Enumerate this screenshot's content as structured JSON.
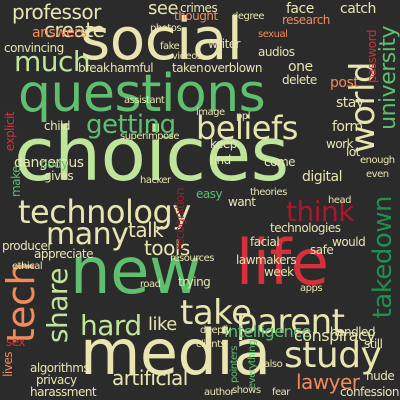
{
  "colors": {
    "background": "#2b2b2b",
    "light_green": "#bfe59a",
    "mid_green": "#5fbf6f",
    "dark_green": "#1f8f4a",
    "cream": "#e8e5b0",
    "orange": "#f28a5a",
    "red": "#d7303a",
    "dark_red": "#a9182a"
  },
  "words": [
    "choices",
    "media",
    "new",
    "life",
    "social",
    "questions",
    "technology",
    "tech",
    "many",
    "parent",
    "study",
    "take",
    "share",
    "hard",
    "beliefs",
    "getting",
    "think",
    "takedown",
    "world",
    "university",
    "much",
    "professor",
    "see",
    "create",
    "answers",
    "convincing",
    "tools",
    "lawyer",
    "artificial",
    "talk",
    "intelligence",
    "conspiracy",
    "like",
    "recognition",
    "dangerous",
    "explicit",
    "password",
    "research",
    "catch",
    "face",
    "post",
    "stay",
    "form",
    "one",
    "delete",
    "privacy",
    "harassment",
    "algorithms",
    "confession",
    "nude",
    "lives",
    "sex",
    "ethical",
    "appreciate",
    "producer",
    "make",
    "gives",
    "body",
    "keep",
    "work",
    "digital",
    "come",
    "find",
    "trying",
    "road",
    "handled",
    "week",
    "safe",
    "would",
    "still",
    "technologies",
    "facial",
    "resources",
    "shows",
    "author",
    "fear",
    "also",
    "pointers",
    "even",
    "lot",
    "enough",
    "head",
    "easy",
    "want",
    "theories",
    "break",
    "harmful",
    "taken",
    "overblown",
    "thought",
    "crimes",
    "writer",
    "audios",
    "degree",
    "image",
    "superimpose",
    "child",
    "assistant",
    "hacker",
    "everything",
    "lawmakers",
    "deeply",
    "clients",
    "sexual",
    "ppl",
    "fake",
    "videos",
    "photos",
    "apps"
  ]
}
